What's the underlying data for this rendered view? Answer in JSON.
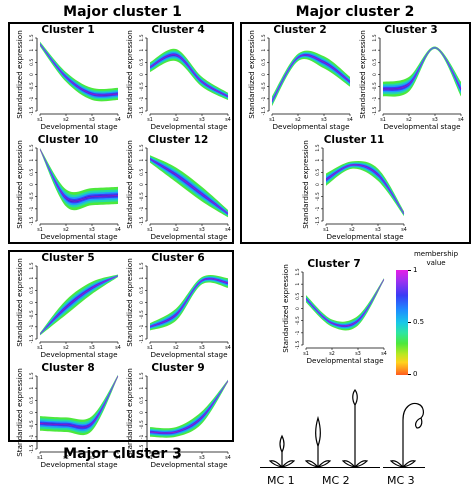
{
  "groups": {
    "mc1": "Major cluster 1",
    "mc2": "Major cluster 2",
    "mc3": "Major cluster 3"
  },
  "axis": {
    "xlabel": "Developmental stage",
    "ylabel": "Standardized expression",
    "xticks": [
      "s1",
      "s2",
      "s3",
      "s4"
    ],
    "yticks": [
      "1.5",
      "1",
      "0.5",
      "0",
      "-0.5",
      "-1",
      "-1.5"
    ]
  },
  "legend": {
    "title": "membership value",
    "ticks": [
      "1",
      "0.5",
      "0"
    ],
    "colors": [
      "#e61ee6",
      "#3b3bf5",
      "#18c8e8",
      "#4de83c",
      "#ffd21e",
      "#ff5a1e"
    ]
  },
  "stages": [
    "MC 1",
    "MC 2",
    "MC 3"
  ],
  "chart_data": [
    {
      "type": "line",
      "title": "Cluster 1",
      "group": "Major cluster 1",
      "x": [
        "s1",
        "s2",
        "s3",
        "s4"
      ],
      "y": [
        1.25,
        -0.1,
        -0.8,
        -0.8
      ],
      "band": [
        0.1,
        0.2,
        0.25,
        0.25
      ],
      "ylim": [
        -1.5,
        1.5
      ]
    },
    {
      "type": "line",
      "title": "Cluster 4",
      "group": "Major cluster 1",
      "x": [
        "s1",
        "s2",
        "s3",
        "s4"
      ],
      "y": [
        0.3,
        0.8,
        -0.3,
        -0.9
      ],
      "band": [
        0.2,
        0.25,
        0.2,
        0.15
      ],
      "ylim": [
        -1.5,
        1.5
      ]
    },
    {
      "type": "line",
      "title": "Cluster 10",
      "group": "Major cluster 1",
      "x": [
        "s1",
        "s2",
        "s3",
        "s4"
      ],
      "y": [
        1.45,
        -0.55,
        -0.5,
        -0.45
      ],
      "band": [
        0.05,
        0.35,
        0.35,
        0.35
      ],
      "ylim": [
        -1.5,
        1.5
      ]
    },
    {
      "type": "line",
      "title": "Cluster 12",
      "group": "Major cluster 1",
      "x": [
        "s1",
        "s2",
        "s3",
        "s4"
      ],
      "y": [
        1.05,
        0.4,
        -0.4,
        -1.2
      ],
      "band": [
        0.15,
        0.3,
        0.3,
        0.15
      ],
      "ylim": [
        -1.5,
        1.5
      ]
    },
    {
      "type": "line",
      "title": "Cluster 2",
      "group": "Major cluster 2",
      "x": [
        "s1",
        "s2",
        "s3",
        "s4"
      ],
      "y": [
        -1.1,
        0.7,
        0.5,
        -0.3
      ],
      "band": [
        0.2,
        0.15,
        0.25,
        0.2
      ],
      "ylim": [
        -1.5,
        1.5
      ]
    },
    {
      "type": "line",
      "title": "Cluster 3",
      "group": "Major cluster 2",
      "x": [
        "s1",
        "s2",
        "s3",
        "s4"
      ],
      "y": [
        -0.6,
        -0.4,
        1.1,
        -0.6
      ],
      "band": [
        0.3,
        0.3,
        0.05,
        0.3
      ],
      "ylim": [
        -1.5,
        1.5
      ]
    },
    {
      "type": "line",
      "title": "Cluster 11",
      "group": "Major cluster 2",
      "x": [
        "s1",
        "s2",
        "s3",
        "s4"
      ],
      "y": [
        0.2,
        0.8,
        0.4,
        -1.2
      ],
      "band": [
        0.25,
        0.15,
        0.25,
        0.1
      ],
      "ylim": [
        -1.5,
        1.5
      ]
    },
    {
      "type": "line",
      "title": "Cluster 5",
      "group": "Major cluster 3",
      "x": [
        "s1",
        "s2",
        "s3",
        "s4"
      ],
      "y": [
        -1.3,
        -0.2,
        0.6,
        1.1
      ],
      "band": [
        0.05,
        0.3,
        0.25,
        0.05
      ],
      "ylim": [
        -1.5,
        1.5
      ]
    },
    {
      "type": "line",
      "title": "Cluster 6",
      "group": "Major cluster 3",
      "x": [
        "s1",
        "s2",
        "s3",
        "s4"
      ],
      "y": [
        -1.0,
        -0.5,
        0.9,
        0.8
      ],
      "band": [
        0.15,
        0.25,
        0.15,
        0.2
      ],
      "ylim": [
        -1.5,
        1.5
      ]
    },
    {
      "type": "line",
      "title": "Cluster 7",
      "group": "none",
      "x": [
        "s1",
        "s2",
        "s3",
        "s4"
      ],
      "y": [
        0.4,
        -0.6,
        -0.5,
        1.2
      ],
      "band": [
        0.15,
        0.15,
        0.2,
        0.05
      ],
      "ylim": [
        -1.5,
        1.5
      ]
    },
    {
      "type": "line",
      "title": "Cluster 8",
      "group": "Major cluster 3",
      "x": [
        "s1",
        "s2",
        "s3",
        "s4"
      ],
      "y": [
        -0.45,
        -0.5,
        -0.45,
        1.5
      ],
      "band": [
        0.3,
        0.3,
        0.3,
        0.05
      ],
      "ylim": [
        -1.5,
        1.5
      ]
    },
    {
      "type": "line",
      "title": "Cluster 9",
      "group": "Major cluster 3",
      "x": [
        "s1",
        "s2",
        "s3",
        "s4"
      ],
      "y": [
        -0.8,
        -0.8,
        -0.2,
        1.3
      ],
      "band": [
        0.2,
        0.2,
        0.25,
        0.05
      ],
      "ylim": [
        -1.5,
        1.5
      ]
    }
  ]
}
